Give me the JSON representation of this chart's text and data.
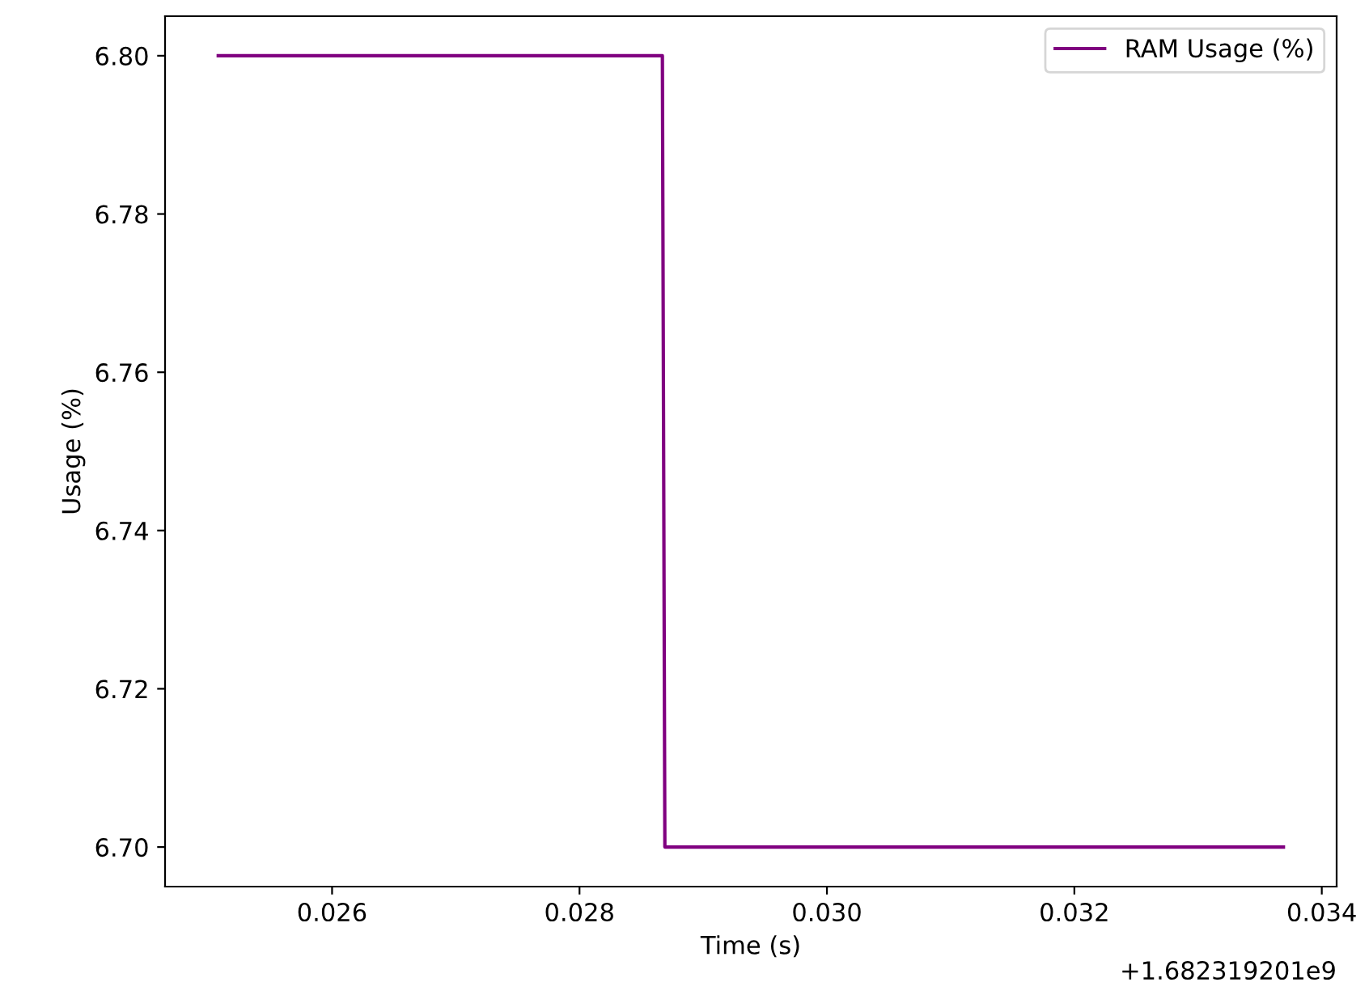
{
  "chart_data": {
    "type": "line",
    "xlabel": "Time (s)",
    "ylabel": "Usage (%)",
    "annotations": [
      "+1.682319201e9"
    ],
    "x": [
      0.02508,
      0.02867,
      0.02869,
      0.03369
    ],
    "series": [
      {
        "name": "RAM Usage (%)",
        "color": "#800080",
        "values": [
          6.8,
          6.8,
          6.7,
          6.7
        ]
      }
    ],
    "xlim": [
      0.02465,
      0.03412
    ],
    "xticks": [
      {
        "value": 0.026,
        "label": "0.026"
      },
      {
        "value": 0.028,
        "label": "0.028"
      },
      {
        "value": 0.03,
        "label": "0.030"
      },
      {
        "value": 0.032,
        "label": "0.032"
      },
      {
        "value": 0.034,
        "label": "0.034"
      }
    ],
    "ylim": [
      6.695,
      6.805
    ],
    "yticks": [
      {
        "value": 6.7,
        "label": "6.70"
      },
      {
        "value": 6.72,
        "label": "6.72"
      },
      {
        "value": 6.74,
        "label": "6.74"
      },
      {
        "value": 6.76,
        "label": "6.76"
      },
      {
        "value": 6.78,
        "label": "6.78"
      },
      {
        "value": 6.8,
        "label": "6.80"
      }
    ],
    "legend": "top right",
    "grid": false
  }
}
